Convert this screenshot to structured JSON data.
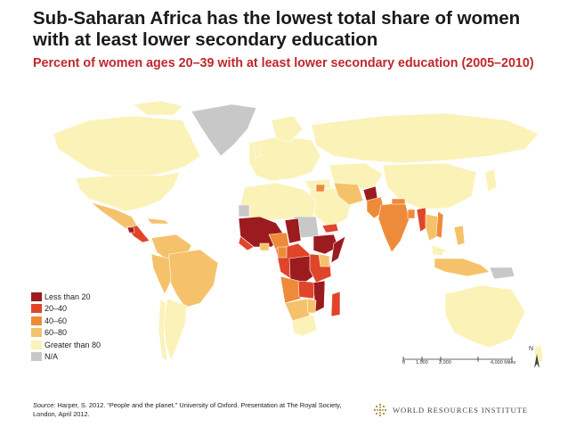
{
  "header": {
    "title": "Sub-Saharan Africa has the lowest total share of women with at least lower secondary education",
    "subtitle": "Percent of women ages 20–39 with at least lower secondary education (2005–2010)"
  },
  "map": {
    "legend": [
      {
        "label": "Less than 20",
        "color": "#9b1b1f"
      },
      {
        "label": "20–40",
        "color": "#e0452a"
      },
      {
        "label": "40–60",
        "color": "#ee8b3a"
      },
      {
        "label": "60–80",
        "color": "#f5c26b"
      },
      {
        "label": "Greater than 80",
        "color": "#fbf2b8"
      },
      {
        "label": "N/A",
        "color": "#c8c8c8"
      }
    ],
    "scale_bar": {
      "ticks": [
        "0",
        "1,000",
        "2,000",
        "4,000 Miles"
      ]
    },
    "north_label": "N"
  },
  "source": {
    "label": "Source:",
    "text": "Harper, S. 2012. “People and the planet.” University of Oxford. Presentation at The Royal Society, London, April 2012."
  },
  "footer": {
    "org_name": "WORLD RESOURCES INSTITUTE"
  }
}
